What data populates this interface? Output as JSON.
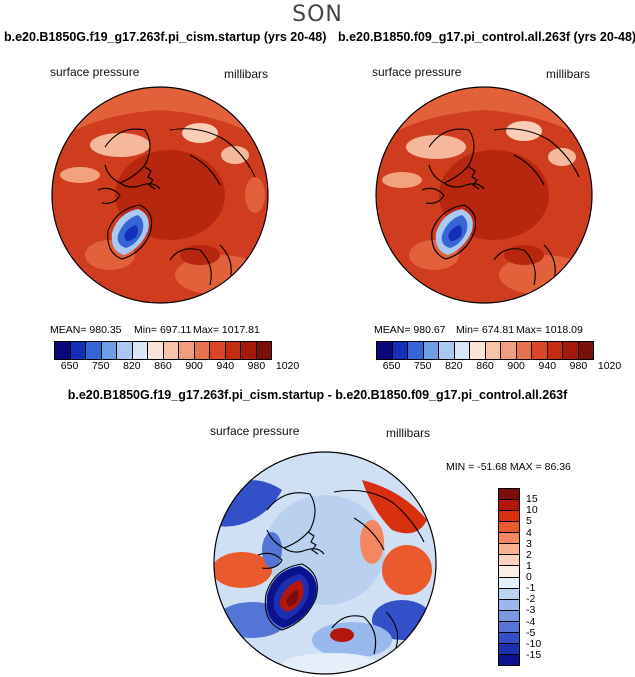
{
  "season": "SON",
  "left_panel": {
    "title": "b.e20.B1850G.f19_g17.263f.pi_cism.startup (yrs 20-48)",
    "variable": "surface pressure",
    "units": "millibars",
    "mean_label": "MEAN= 980.35",
    "min_label": "Min= 697.11",
    "max_label": "Max= 1017.81"
  },
  "right_panel": {
    "title": "b.e20.B1850.f09_g17.pi_control.all.263f (yrs 20-48)",
    "variable": "surface pressure",
    "units": "millibars",
    "mean_label": "MEAN= 980.67",
    "min_label": "Min= 674.81",
    "max_label": "Max= 1018.09"
  },
  "diff_panel": {
    "title": "b.e20.B1850G.f19_g17.263f.pi_cism.startup - b.e20.B1850.f09_g17.pi_control.all.263f",
    "variable": "surface pressure",
    "units": "millibars",
    "minmax_label": "MIN = -51.68 MAX = 86.36"
  },
  "colorbar_abs": {
    "ticks": [
      "650",
      "750",
      "820",
      "860",
      "900",
      "940",
      "980",
      "1020"
    ],
    "colors": [
      "#08087a",
      "#1530b8",
      "#3565d6",
      "#6f9de6",
      "#a9c8f2",
      "#d8e6f7",
      "#fbe3d5",
      "#f8c3a6",
      "#f29d7b",
      "#e8714e",
      "#db4528",
      "#c22d13",
      "#a71a0b",
      "#7c0f09"
    ]
  },
  "colorbar_diff": {
    "ticks": [
      "15",
      "10",
      "5",
      "4",
      "3",
      "2",
      "1",
      "0",
      "-1",
      "-2",
      "-3",
      "-4",
      "-5",
      "-10",
      "-15"
    ],
    "colors": [
      "#7c0f09",
      "#b3160a",
      "#d8300f",
      "#ea5a2d",
      "#f48760",
      "#f8b08e",
      "#fbd3bd",
      "#fdeee3",
      "#e4effa",
      "#bcd3f2",
      "#99b9ec",
      "#7799e2",
      "#5574d7",
      "#3350c8",
      "#1c2fb1",
      "#0b1290"
    ]
  }
}
